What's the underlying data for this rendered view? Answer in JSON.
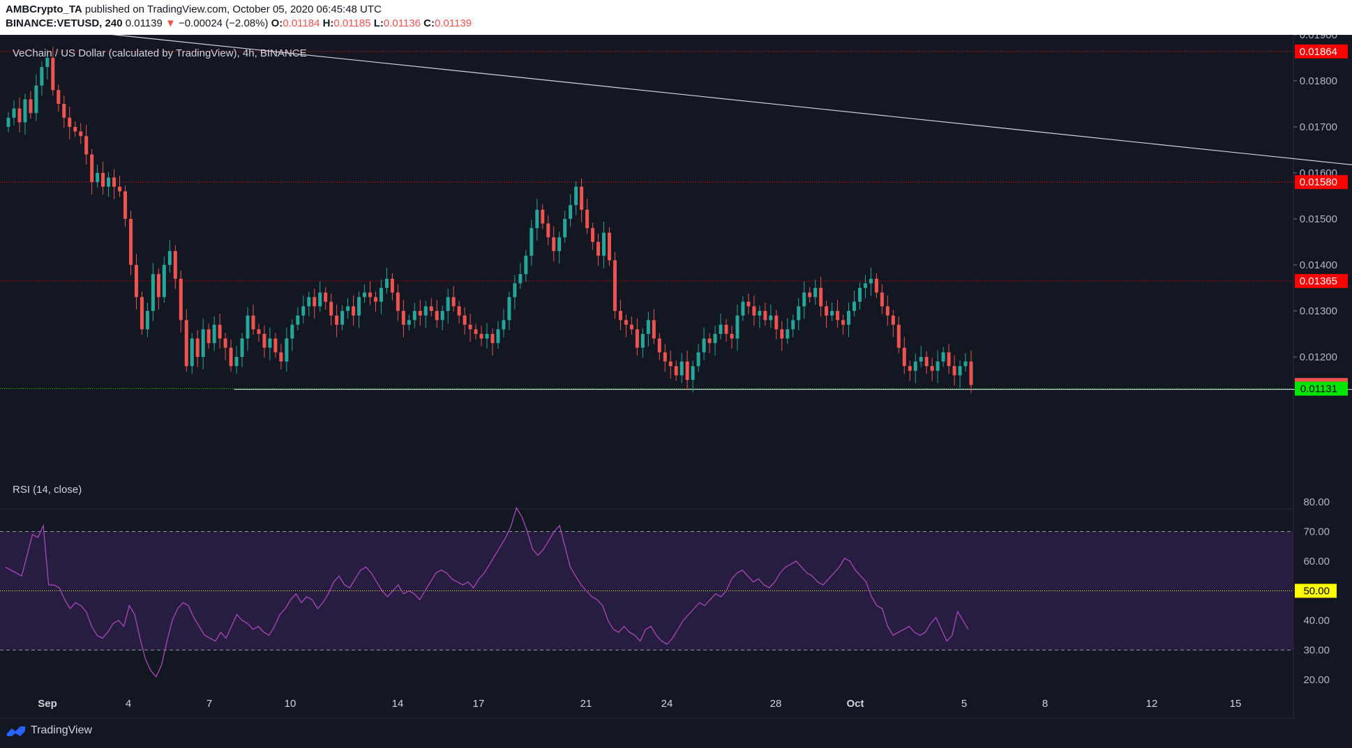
{
  "header": {
    "publisher": "AMBCrypto_TA",
    "published_text": "published on TradingView.com, October 05, 2020 06:45:48 UTC",
    "symbol": "BINANCE:VETUSD, 240",
    "last": "0.01139",
    "change_arrow": "▼",
    "change": "−0.00024 (−2.08%)",
    "o_label": "O:",
    "o": "0.01184",
    "h_label": "H:",
    "h": "0.01185",
    "l_label": "L:",
    "l": "0.01136",
    "c_label": "C:",
    "c": "0.01139"
  },
  "chart_title": "VeChain / US Dollar (calculated by TradingView), 4h, BINANCE",
  "rsi_title": "RSI (14, close)",
  "footer": {
    "brand": "TradingView"
  },
  "colors": {
    "background": "#131722",
    "up": "#26a69a",
    "down": "#ef5350",
    "rsi_line": "#ab47bc",
    "rsi_band": "#2a1f45",
    "trendline": "#d1d4dc",
    "level_red": "#ff0000",
    "level_green": "#00e600",
    "mid_label": "#ffff00"
  },
  "chart_data": [
    {
      "type": "candlestick",
      "title": "VeChain / US Dollar (calculated by TradingView), 4h, BINANCE",
      "y_range": [
        0.0108,
        0.0196
      ],
      "y_ticks": [
        "0.01900",
        "0.01800",
        "0.01700",
        "0.01600",
        "0.01500",
        "0.01400",
        "0.01300",
        "0.01200"
      ],
      "x_ticks": [
        "Sep",
        "4",
        "7",
        "10",
        "14",
        "17",
        "21",
        "24",
        "28",
        "Oct",
        "5",
        "8",
        "12",
        "15"
      ],
      "price_levels": [
        {
          "label": "0.01864",
          "value": 0.01864,
          "color": "#ff0000"
        },
        {
          "label": "0.01580",
          "value": 0.0158,
          "color": "#ff0000"
        },
        {
          "label": "0.01365",
          "value": 0.01365,
          "color": "#ff0000"
        },
        {
          "label": "0.01139",
          "value": 0.01139,
          "color": "#ef5350"
        },
        {
          "label": "0.01131",
          "value": 0.01131,
          "color": "#00e600"
        }
      ],
      "closes": [
        0.0172,
        0.0174,
        0.0171,
        0.0176,
        0.0173,
        0.0179,
        0.0183,
        0.0185,
        0.0178,
        0.0175,
        0.0172,
        0.017,
        0.0169,
        0.0168,
        0.0164,
        0.0158,
        0.016,
        0.0157,
        0.0159,
        0.0157,
        0.0156,
        0.015,
        0.014,
        0.0133,
        0.0126,
        0.013,
        0.0138,
        0.0133,
        0.014,
        0.0143,
        0.0137,
        0.0128,
        0.0118,
        0.0124,
        0.012,
        0.0126,
        0.0123,
        0.0127,
        0.0124,
        0.0122,
        0.0118,
        0.012,
        0.0124,
        0.0129,
        0.0126,
        0.0125,
        0.0122,
        0.0124,
        0.0121,
        0.0119,
        0.0124,
        0.0127,
        0.0129,
        0.0131,
        0.0133,
        0.0131,
        0.0134,
        0.0132,
        0.0129,
        0.0127,
        0.013,
        0.0131,
        0.0129,
        0.0133,
        0.0134,
        0.0133,
        0.0132,
        0.0135,
        0.0137,
        0.0134,
        0.013,
        0.0127,
        0.0128,
        0.013,
        0.0129,
        0.0131,
        0.013,
        0.0128,
        0.013,
        0.0133,
        0.0131,
        0.0129,
        0.0127,
        0.0126,
        0.0125,
        0.0124,
        0.0125,
        0.0123,
        0.0126,
        0.0128,
        0.0133,
        0.0136,
        0.0138,
        0.0142,
        0.0148,
        0.0152,
        0.0149,
        0.0146,
        0.0143,
        0.0146,
        0.015,
        0.0153,
        0.0157,
        0.0152,
        0.0148,
        0.0145,
        0.0142,
        0.0147,
        0.0141,
        0.013,
        0.0128,
        0.0127,
        0.0126,
        0.0122,
        0.0125,
        0.0128,
        0.0124,
        0.0121,
        0.0119,
        0.0118,
        0.0116,
        0.0119,
        0.0115,
        0.0118,
        0.0121,
        0.0124,
        0.0123,
        0.0125,
        0.0127,
        0.0125,
        0.0124,
        0.0129,
        0.0132,
        0.0131,
        0.0129,
        0.013,
        0.0128,
        0.0129,
        0.0126,
        0.0124,
        0.0126,
        0.0128,
        0.0131,
        0.0134,
        0.0133,
        0.0135,
        0.0131,
        0.0129,
        0.013,
        0.0128,
        0.0127,
        0.013,
        0.0132,
        0.0135,
        0.0136,
        0.0137,
        0.0134,
        0.0131,
        0.0129,
        0.0127,
        0.0122,
        0.0118,
        0.0117,
        0.0119,
        0.012,
        0.0118,
        0.0117,
        0.0119,
        0.0121,
        0.0118,
        0.0116,
        0.0118,
        0.0119,
        0.01139
      ],
      "trendline": {
        "from": {
          "date": "2020-08-31",
          "price": 0.01925
        },
        "to": {
          "date": "2020-10-11",
          "price": 0.0115
        }
      },
      "support": {
        "from": {
          "date": "2020-09-03",
          "price": 0.01131
        },
        "to": {
          "date": "2020-10-10",
          "price": 0.01131
        }
      }
    },
    {
      "type": "line",
      "title": "RSI (14, close)",
      "y_range": [
        15,
        85
      ],
      "y_ticks": [
        "80.00",
        "70.00",
        "60.00",
        "50.00",
        "40.00",
        "30.00",
        "20.00"
      ],
      "band": [
        30,
        70
      ],
      "midline": {
        "value": 50,
        "label": "50.00"
      },
      "values": [
        58,
        57,
        56,
        55,
        62,
        69,
        68,
        72,
        52,
        52,
        51,
        47,
        44,
        46,
        45,
        43,
        38,
        35,
        34,
        36,
        39,
        40,
        38,
        45,
        42,
        34,
        27,
        23,
        21,
        25,
        33,
        40,
        44,
        46,
        45,
        41,
        38,
        35,
        34,
        33,
        36,
        34,
        38,
        42,
        40,
        39,
        37,
        38,
        36,
        35,
        38,
        42,
        44,
        47,
        49,
        46,
        48,
        47,
        44,
        46,
        49,
        53,
        55,
        52,
        51,
        54,
        57,
        58,
        56,
        53,
        50,
        48,
        50,
        52,
        49,
        50,
        49,
        47,
        50,
        53,
        56,
        57,
        56,
        54,
        53,
        52,
        53,
        51,
        54,
        56,
        59,
        62,
        65,
        68,
        72,
        78,
        75,
        70,
        64,
        62,
        64,
        67,
        70,
        72,
        65,
        58,
        55,
        52,
        50,
        48,
        47,
        45,
        40,
        37,
        36,
        38,
        36,
        35,
        33,
        37,
        38,
        35,
        33,
        32,
        34,
        37,
        40,
        42,
        44,
        46,
        45,
        47,
        49,
        48,
        50,
        54,
        56,
        57,
        55,
        53,
        54,
        52,
        51,
        53,
        56,
        58,
        59,
        60,
        58,
        56,
        55,
        53,
        52,
        54,
        56,
        58,
        61,
        60,
        57,
        55,
        53,
        48,
        45,
        44,
        38,
        35,
        36,
        37,
        38,
        36,
        35,
        36,
        39,
        41,
        37,
        33,
        35,
        43,
        40,
        37
      ]
    }
  ]
}
